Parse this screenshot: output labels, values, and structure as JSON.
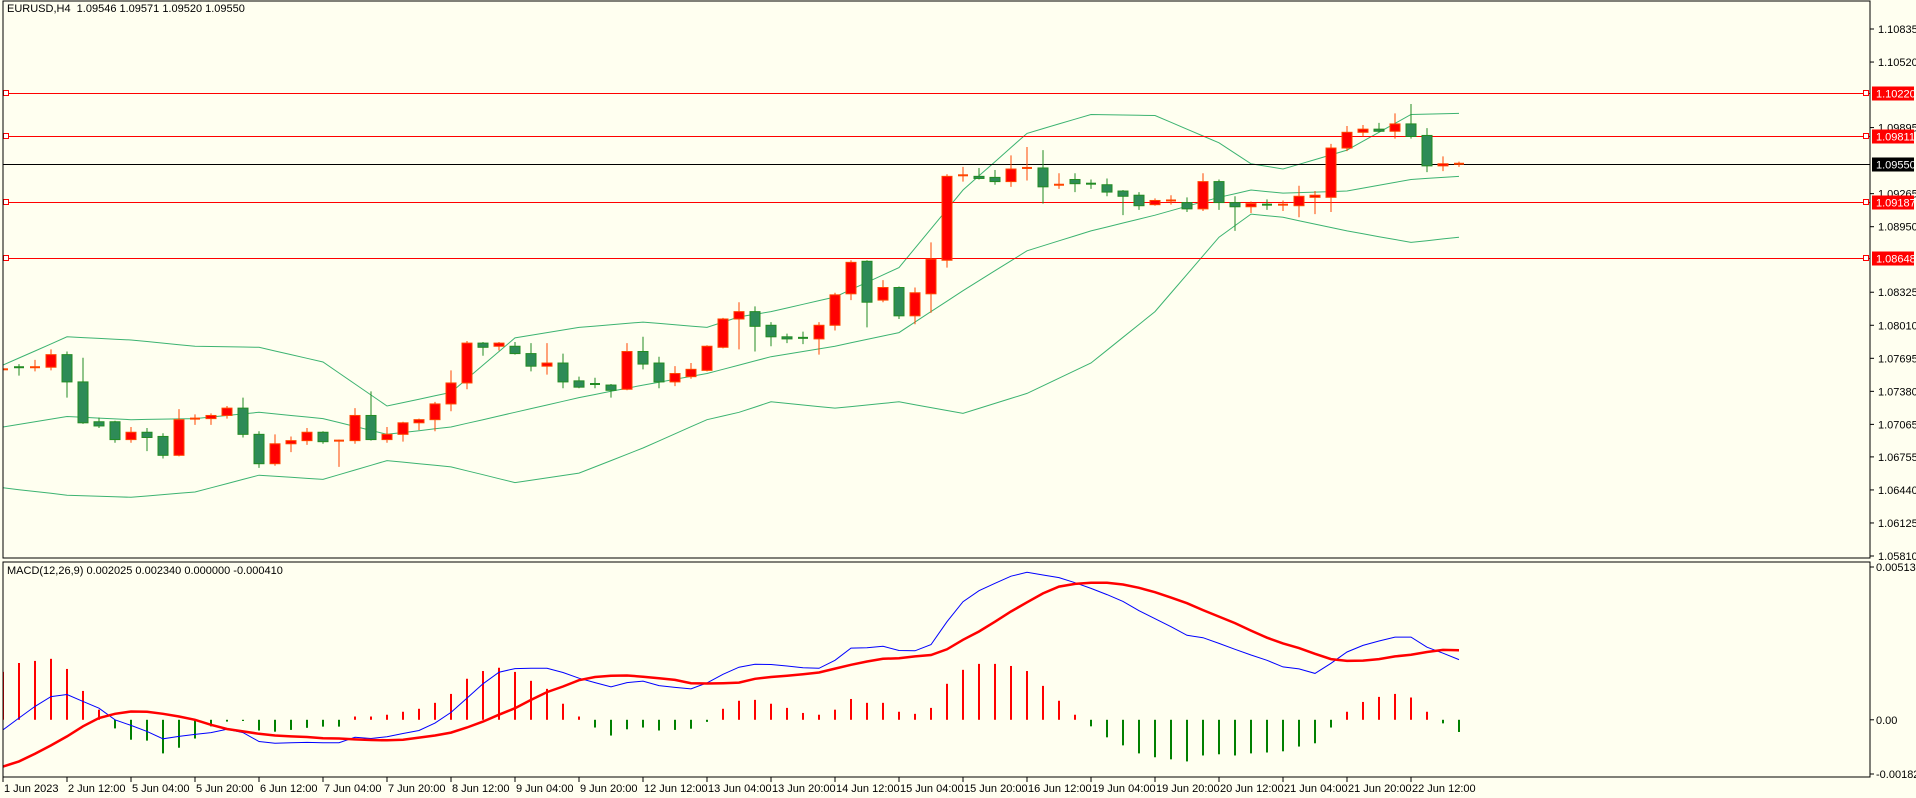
{
  "title": "EURUSD,H4  1.09546 1.09571 1.09520 1.09550",
  "macd_label": "MACD(12,26,9) 0.002025 0.002340 0.000000 -0.000410",
  "colors": {
    "background": "#fffff0",
    "bull_fill": "#ff0000",
    "bull_border": "#ff4500",
    "bear_fill": "#2e8b57",
    "bear_border": "#228b22",
    "bollinger": "#3cb371",
    "level_line": "#ff0000",
    "current_price": "#000000",
    "macd_main": "#0000ff",
    "macd_signal": "#ff0000",
    "hist_pos": "#ff0000",
    "hist_neg": "#008000"
  },
  "chart_data": [
    {
      "type": "candlestick",
      "symbol": "EURUSD",
      "timeframe": "H4",
      "ylim": [
        1.0581,
        1.10835
      ],
      "y_ticks": [
        "1.10835",
        "1.10520",
        "1.09895",
        "1.09265",
        "1.08950",
        "1.08325",
        "1.08010",
        "1.07695",
        "1.07380",
        "1.07065",
        "1.06755",
        "1.06440",
        "1.06125",
        "1.05810"
      ],
      "x_labels": [
        {
          "bar": 0,
          "text": "1 Jun 2023"
        },
        {
          "bar": 4,
          "text": "2 Jun 12:00"
        },
        {
          "bar": 8,
          "text": "5 Jun 04:00"
        },
        {
          "bar": 12,
          "text": "5 Jun 20:00"
        },
        {
          "bar": 16,
          "text": "6 Jun 12:00"
        },
        {
          "bar": 20,
          "text": "7 Jun 04:00"
        },
        {
          "bar": 24,
          "text": "7 Jun 20:00"
        },
        {
          "bar": 28,
          "text": "8 Jun 12:00"
        },
        {
          "bar": 32,
          "text": "9 Jun 04:00"
        },
        {
          "bar": 36,
          "text": "9 Jun 20:00"
        },
        {
          "bar": 40,
          "text": "12 Jun 12:00"
        },
        {
          "bar": 44,
          "text": "13 Jun 04:00"
        },
        {
          "bar": 48,
          "text": "13 Jun 20:00"
        },
        {
          "bar": 52,
          "text": "14 Jun 12:00"
        },
        {
          "bar": 56,
          "text": "15 Jun 04:00"
        },
        {
          "bar": 60,
          "text": "15 Jun 20:00"
        },
        {
          "bar": 64,
          "text": "16 Jun 12:00"
        },
        {
          "bar": 68,
          "text": "19 Jun 04:00"
        },
        {
          "bar": 72,
          "text": "19 Jun 20:00"
        },
        {
          "bar": 76,
          "text": "20 Jun 12:00"
        },
        {
          "bar": 80,
          "text": "21 Jun 04:00"
        },
        {
          "bar": 84,
          "text": "21 Jun 20:00"
        },
        {
          "bar": 88,
          "text": "22 Jun 12:00"
        }
      ],
      "levels": [
        {
          "price": 1.1022,
          "text": "1.10220"
        },
        {
          "price": 1.09811,
          "text": "1.09811"
        },
        {
          "price": 1.09187,
          "text": "1.09187"
        },
        {
          "price": 1.08648,
          "text": "1.08648"
        }
      ],
      "current_price": {
        "price": 1.0955,
        "text": "1.09550"
      },
      "ohlc": [
        [
          1.0758,
          1.0768,
          1.0754,
          1.0759
        ],
        [
          1.0761,
          1.0764,
          1.0753,
          1.076
        ],
        [
          1.076,
          1.0768,
          1.0757,
          1.0761
        ],
        [
          1.0761,
          1.0778,
          1.0758,
          1.0773
        ],
        [
          1.0773,
          1.0776,
          1.0732,
          1.0747
        ],
        [
          1.0747,
          1.077,
          1.0707,
          1.0708
        ],
        [
          1.0709,
          1.0713,
          1.0703,
          1.0705
        ],
        [
          1.0709,
          1.071,
          1.0689,
          1.0692
        ],
        [
          1.0692,
          1.0704,
          1.0689,
          1.0699
        ],
        [
          1.0699,
          1.0703,
          1.0681,
          1.0694
        ],
        [
          1.0695,
          1.0698,
          1.0674,
          1.0677
        ],
        [
          1.0677,
          1.0721,
          1.0676,
          1.0711
        ],
        [
          1.0711,
          1.0716,
          1.0706,
          1.0712
        ],
        [
          1.0712,
          1.0717,
          1.0706,
          1.0715
        ],
        [
          1.0715,
          1.0724,
          1.0712,
          1.0722
        ],
        [
          1.0722,
          1.0732,
          1.0694,
          1.0697
        ],
        [
          1.0697,
          1.07,
          1.0665,
          1.0669
        ],
        [
          1.0669,
          1.0697,
          1.0667,
          1.0688
        ],
        [
          1.0688,
          1.0695,
          1.068,
          1.0691
        ],
        [
          1.0691,
          1.0703,
          1.0687,
          1.0699
        ],
        [
          1.0699,
          1.07,
          1.0688,
          1.069
        ],
        [
          1.069,
          1.0692,
          1.0666,
          1.0691
        ],
        [
          1.0691,
          1.0722,
          1.0688,
          1.0715
        ],
        [
          1.0715,
          1.0738,
          1.0691,
          1.0692
        ],
        [
          1.0692,
          1.0704,
          1.0689,
          1.0697
        ],
        [
          1.0697,
          1.0709,
          1.069,
          1.0708
        ],
        [
          1.0708,
          1.0712,
          1.0701,
          1.0711
        ],
        [
          1.0711,
          1.0728,
          1.07,
          1.0726
        ],
        [
          1.0726,
          1.0758,
          1.0719,
          1.0746
        ],
        [
          1.0746,
          1.0786,
          1.074,
          1.0784
        ],
        [
          1.0784,
          1.0785,
          1.0772,
          1.078
        ],
        [
          1.0781,
          1.0785,
          1.0777,
          1.0784
        ],
        [
          1.0781,
          1.0785,
          1.0773,
          1.0774
        ],
        [
          1.0774,
          1.0784,
          1.0757,
          1.0762
        ],
        [
          1.0762,
          1.0784,
          1.0754,
          1.0765
        ],
        [
          1.0765,
          1.0774,
          1.0741,
          1.0747
        ],
        [
          1.0748,
          1.0752,
          1.0741,
          1.0742
        ],
        [
          1.0745,
          1.0751,
          1.0741,
          1.0744
        ],
        [
          1.0744,
          1.0745,
          1.0732,
          1.0739
        ],
        [
          1.074,
          1.0784,
          1.0739,
          1.0776
        ],
        [
          1.0776,
          1.079,
          1.0759,
          1.0764
        ],
        [
          1.0765,
          1.0771,
          1.0741,
          1.0747
        ],
        [
          1.0747,
          1.0762,
          1.0743,
          1.0755
        ],
        [
          1.0752,
          1.0765,
          1.075,
          1.0759
        ],
        [
          1.0758,
          1.0782,
          1.0757,
          1.0781
        ],
        [
          1.078,
          1.0808,
          1.0779,
          1.0807
        ],
        [
          1.0807,
          1.0823,
          1.0778,
          1.0814
        ],
        [
          1.0814,
          1.0819,
          1.0776,
          1.08
        ],
        [
          1.0801,
          1.0804,
          1.0781,
          1.079
        ],
        [
          1.079,
          1.0793,
          1.0784,
          1.0788
        ],
        [
          1.0789,
          1.0795,
          1.0783,
          1.0788
        ],
        [
          1.0788,
          1.0804,
          1.0773,
          1.0801
        ],
        [
          1.0801,
          1.0832,
          1.0796,
          1.083
        ],
        [
          1.0831,
          1.0863,
          1.0825,
          1.0861
        ],
        [
          1.0862,
          1.0863,
          1.0799,
          1.0823
        ],
        [
          1.0825,
          1.0844,
          1.0823,
          1.0837
        ],
        [
          1.0837,
          1.0838,
          1.0807,
          1.081
        ],
        [
          1.081,
          1.0837,
          1.0802,
          1.0832
        ],
        [
          1.0831,
          1.088,
          1.0813,
          1.0864
        ],
        [
          1.0863,
          1.0945,
          1.0856,
          1.0943
        ],
        [
          1.0943,
          1.0952,
          1.0938,
          1.0944
        ],
        [
          1.0943,
          1.0951,
          1.094,
          1.0941
        ],
        [
          1.0942,
          1.0949,
          1.0935,
          1.0938
        ],
        [
          1.0938,
          1.0963,
          1.0933,
          1.095
        ],
        [
          1.095,
          1.0971,
          1.0939,
          1.0951
        ],
        [
          1.0951,
          1.0968,
          1.0917,
          1.0933
        ],
        [
          1.0934,
          1.0946,
          1.0931,
          1.0935
        ],
        [
          1.094,
          1.0946,
          1.0928,
          1.0936
        ],
        [
          1.0936,
          1.094,
          1.0931,
          1.0935
        ],
        [
          1.0935,
          1.0941,
          1.0924,
          1.0928
        ],
        [
          1.0929,
          1.093,
          1.0906,
          1.0924
        ],
        [
          1.0925,
          1.0928,
          1.0911,
          1.0915
        ],
        [
          1.0916,
          1.0922,
          1.0915,
          1.092
        ],
        [
          1.0919,
          1.0925,
          1.0916,
          1.092
        ],
        [
          1.0918,
          1.0923,
          1.0909,
          1.0912
        ],
        [
          1.0912,
          1.0946,
          1.091,
          1.0938
        ],
        [
          1.0938,
          1.094,
          1.0911,
          1.0918
        ],
        [
          1.0918,
          1.0924,
          1.0891,
          1.0914
        ],
        [
          1.0914,
          1.0919,
          1.0908,
          1.0917
        ],
        [
          1.0916,
          1.0921,
          1.0911,
          1.0915
        ],
        [
          1.0915,
          1.092,
          1.091,
          1.0916
        ],
        [
          1.0915,
          1.0934,
          1.0904,
          1.0924
        ],
        [
          1.0923,
          1.0929,
          1.0907,
          1.0925
        ],
        [
          1.0923,
          1.0974,
          1.0909,
          1.097
        ],
        [
          1.097,
          1.0991,
          1.0967,
          1.0985
        ],
        [
          1.0985,
          1.0992,
          1.0981,
          1.0988
        ],
        [
          1.0988,
          1.0994,
          1.0985,
          1.0986
        ],
        [
          1.0986,
          1.1003,
          1.0979,
          1.0993
        ],
        [
          1.0993,
          1.1012,
          1.0979,
          1.0981
        ],
        [
          1.0982,
          1.0989,
          1.0947,
          1.0953
        ],
        [
          1.0953,
          1.0962,
          1.0948,
          1.0955
        ],
        [
          1.09546,
          1.09571,
          1.0952,
          1.0955
        ]
      ],
      "bollinger": {
        "bars": [
          0,
          4,
          8,
          12,
          16,
          20,
          24,
          28,
          32,
          36,
          40,
          44,
          46,
          48,
          52,
          56,
          60,
          64,
          68,
          72,
          76,
          78,
          80,
          84,
          88,
          91
        ],
        "upper": [
          1.0763,
          1.079,
          1.0787,
          1.0781,
          1.078,
          1.0766,
          1.0724,
          1.0737,
          1.0789,
          1.0799,
          1.0804,
          1.0799,
          1.0809,
          1.0814,
          1.0828,
          1.0856,
          1.093,
          1.0984,
          1.1002,
          1.1001,
          1.0975,
          1.0955,
          1.095,
          1.0968,
          1.1002,
          1.1003
        ],
        "middle": [
          1.0704,
          1.0714,
          1.0711,
          1.0712,
          1.0718,
          1.0712,
          1.0697,
          1.0704,
          1.0718,
          1.0732,
          1.0744,
          1.0755,
          1.0763,
          1.0771,
          1.0781,
          1.0794,
          1.0834,
          1.0872,
          1.0891,
          1.0906,
          1.0923,
          1.093,
          1.0927,
          1.0929,
          1.094,
          1.0943
        ],
        "lower": [
          1.0646,
          1.0639,
          1.0637,
          1.0642,
          1.0658,
          1.0654,
          1.0672,
          1.0666,
          1.0651,
          1.066,
          1.0684,
          1.0711,
          1.0718,
          1.0728,
          1.0722,
          1.0728,
          1.0717,
          1.0736,
          1.0765,
          1.0814,
          1.0885,
          1.0907,
          1.0904,
          1.0891,
          1.088,
          1.0885
        ]
      }
    },
    {
      "type": "macd",
      "params": "12,26,9",
      "ylim": [
        -0.001823,
        0.005138
      ],
      "y_ticks": [
        "0.005138",
        "0.00",
        "-0.001823"
      ],
      "histogram": [
        0.00161,
        0.00191,
        0.00198,
        0.00205,
        0.00171,
        0.00097,
        0.00034,
        -0.00029,
        -0.00067,
        -0.0007,
        -0.00113,
        -0.00094,
        -0.00063,
        -0.00022,
        -6e-05,
        -4e-05,
        -0.00036,
        -0.0004,
        -0.00034,
        -0.00027,
        -0.00023,
        -0.00023,
        0.00011,
        0.00011,
        0.00017,
        0.00027,
        0.00037,
        0.00057,
        0.00087,
        0.00138,
        0.00164,
        0.00175,
        0.00161,
        0.00131,
        0.00104,
        0.00054,
        0.00011,
        -0.00026,
        -0.00053,
        -0.00032,
        -0.00026,
        -0.00036,
        -0.00034,
        -0.0003,
        -7e-05,
        0.00037,
        0.00064,
        0.00067,
        0.00054,
        0.0004,
        0.00023,
        0.00017,
        0.00034,
        0.0007,
        0.00057,
        0.00057,
        0.00027,
        0.0002,
        0.0004,
        0.00121,
        0.00168,
        0.00188,
        0.00188,
        0.00181,
        0.00164,
        0.00114,
        0.00064,
        0.00017,
        -0.00022,
        -0.00059,
        -0.00086,
        -0.00113,
        -0.00126,
        -0.00133,
        -0.0014,
        -0.0012,
        -0.00116,
        -0.0012,
        -0.00113,
        -0.0011,
        -0.00106,
        -0.0009,
        -0.00079,
        -0.00026,
        0.00027,
        0.0006,
        0.00077,
        0.00087,
        0.00075,
        0.00027,
        -0.00012,
        -0.00041
      ],
      "main": [
        -0.00034,
        6e-05,
        0.00045,
        0.00078,
        0.00085,
        0.00062,
        0.00039,
        0.0,
        -0.00019,
        -0.00039,
        -0.00064,
        -0.00056,
        -0.00049,
        -0.00043,
        -0.00032,
        -0.00043,
        -0.00073,
        -0.00079,
        -0.00077,
        -0.00076,
        -0.00077,
        -0.00077,
        -0.00059,
        -0.00063,
        -0.00057,
        -0.00046,
        -0.00036,
        -0.00011,
        0.00025,
        0.00073,
        0.00121,
        0.0016,
        0.00172,
        0.00173,
        0.00173,
        0.00159,
        0.0014,
        0.00125,
        0.00111,
        0.00125,
        0.0013,
        0.00115,
        0.00109,
        0.00104,
        0.00124,
        0.00153,
        0.00177,
        0.00187,
        0.00186,
        0.00181,
        0.00175,
        0.00173,
        0.002,
        0.00241,
        0.00242,
        0.00247,
        0.00233,
        0.00232,
        0.00253,
        0.0033,
        0.00397,
        0.00434,
        0.00459,
        0.00483,
        0.00496,
        0.00487,
        0.00478,
        0.00461,
        0.00442,
        0.00421,
        0.00398,
        0.00367,
        0.0034,
        0.00313,
        0.00284,
        0.00276,
        0.00257,
        0.00237,
        0.00218,
        0.002,
        0.00178,
        0.00171,
        0.00156,
        0.0019,
        0.00228,
        0.0025,
        0.00265,
        0.00278,
        0.00278,
        0.00244,
        0.00224,
        0.002025
      ],
      "signal": [
        -0.00157,
        -0.0014,
        -0.00114,
        -0.00086,
        -0.00056,
        -0.00022,
        6e-05,
        0.0002,
        0.00028,
        0.00027,
        0.0002,
        0.00011,
        0.0,
        -0.00017,
        -0.00031,
        -0.00039,
        -0.00047,
        -0.00053,
        -0.00056,
        -0.00058,
        -0.00062,
        -0.00063,
        -0.00066,
        -0.00068,
        -0.00069,
        -0.00067,
        -0.0006,
        -0.00053,
        -0.00043,
        -0.00026,
        -6e-05,
        0.00017,
        0.00039,
        0.00067,
        0.00093,
        0.00112,
        0.00133,
        0.00144,
        0.00148,
        0.00149,
        0.00145,
        0.0014,
        0.00134,
        0.00123,
        0.00122,
        0.00123,
        0.00125,
        0.00138,
        0.00144,
        0.00148,
        0.00153,
        0.00159,
        0.00172,
        0.00185,
        0.00196,
        0.00205,
        0.00207,
        0.00213,
        0.00218,
        0.00237,
        0.00269,
        0.00297,
        0.0033,
        0.00364,
        0.00395,
        0.00425,
        0.00448,
        0.00457,
        0.00461,
        0.00461,
        0.00455,
        0.00444,
        0.00429,
        0.00411,
        0.00392,
        0.00369,
        0.00347,
        0.00325,
        0.003,
        0.00276,
        0.00257,
        0.00241,
        0.00222,
        0.00204,
        0.00198,
        0.00199,
        0.00204,
        0.00213,
        0.00219,
        0.00228,
        0.00235,
        0.00234
      ]
    }
  ]
}
